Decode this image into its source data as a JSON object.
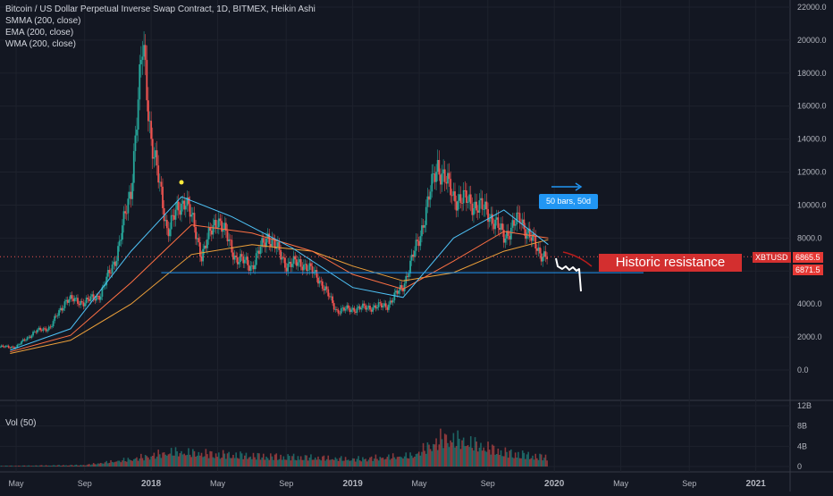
{
  "legend": {
    "title": "Bitcoin / US Dollar Perpetual Inverse Swap Contract, 1D, BITMEX, Heikin Ashi",
    "indicators": [
      "SMMA (200, close)",
      "EMA (200, close)",
      "WMA (200, close)"
    ]
  },
  "volume_label": "Vol (50)",
  "annotations": {
    "measure": "50 bars, 50d",
    "resistance": "Historic resistance"
  },
  "price_tags": {
    "symbol": "XBTUSD",
    "last": "6865.5",
    "other": "6871.5"
  },
  "colors": {
    "background": "#131722",
    "up": "#26a69a",
    "down": "#ef5350",
    "smma": "#f0a23a",
    "ema": "#ff7043",
    "wma": "#4fc3f7",
    "support_line": "#2196f3",
    "resistance_box": "#d32f2f"
  },
  "chart_data": {
    "type": "line",
    "x_ticks": [
      "May",
      "Sep",
      "2018",
      "May",
      "Sep",
      "2019",
      "May",
      "Sep",
      "2020",
      "May",
      "Sep",
      "2021"
    ],
    "y_ticks": [
      "22000.0",
      "20000.0",
      "18000.0",
      "16000.0",
      "14000.0",
      "12000.0",
      "10000.0",
      "8000.0",
      "6000.0",
      "4000.0",
      "2000.0",
      "0.0"
    ],
    "ylim": [
      -1000,
      22500
    ],
    "price": [
      [
        2017.33,
        1400
      ],
      [
        2017.42,
        2300
      ],
      [
        2017.5,
        2600
      ],
      [
        2017.58,
        4300
      ],
      [
        2017.67,
        4100
      ],
      [
        2017.75,
        4600
      ],
      [
        2017.83,
        7000
      ],
      [
        2017.9,
        11000
      ],
      [
        2017.96,
        19800
      ],
      [
        2018.0,
        14000
      ],
      [
        2018.08,
        8500
      ],
      [
        2018.17,
        10500
      ],
      [
        2018.25,
        7000
      ],
      [
        2018.33,
        9300
      ],
      [
        2018.42,
        6800
      ],
      [
        2018.5,
        6300
      ],
      [
        2018.58,
        8200
      ],
      [
        2018.67,
        6400
      ],
      [
        2018.75,
        6500
      ],
      [
        2018.83,
        5600
      ],
      [
        2018.92,
        3600
      ],
      [
        2019.0,
        3700
      ],
      [
        2019.17,
        3900
      ],
      [
        2019.25,
        5100
      ],
      [
        2019.33,
        8000
      ],
      [
        2019.42,
        12500
      ],
      [
        2019.5,
        10500
      ],
      [
        2019.58,
        10200
      ],
      [
        2019.67,
        9600
      ],
      [
        2019.75,
        8100
      ],
      [
        2019.83,
        9200
      ],
      [
        2019.92,
        7200
      ],
      [
        2019.97,
        6900
      ]
    ],
    "smma": [
      [
        2017.3,
        1000
      ],
      [
        2017.6,
        1800
      ],
      [
        2017.9,
        4000
      ],
      [
        2018.2,
        7000
      ],
      [
        2018.5,
        7600
      ],
      [
        2018.8,
        7200
      ],
      [
        2019.0,
        6300
      ],
      [
        2019.25,
        5400
      ],
      [
        2019.5,
        5900
      ],
      [
        2019.75,
        7200
      ],
      [
        2019.97,
        7900
      ]
    ],
    "ema": [
      [
        2017.3,
        1100
      ],
      [
        2017.6,
        2100
      ],
      [
        2017.9,
        5300
      ],
      [
        2018.2,
        8800
      ],
      [
        2018.5,
        8300
      ],
      [
        2018.8,
        7200
      ],
      [
        2019.0,
        5800
      ],
      [
        2019.25,
        4900
      ],
      [
        2019.5,
        6600
      ],
      [
        2019.75,
        8400
      ],
      [
        2019.97,
        8000
      ]
    ],
    "wma": [
      [
        2017.3,
        1200
      ],
      [
        2017.6,
        2500
      ],
      [
        2017.9,
        7200
      ],
      [
        2018.15,
        10500
      ],
      [
        2018.4,
        9300
      ],
      [
        2018.7,
        7400
      ],
      [
        2019.0,
        5000
      ],
      [
        2019.25,
        4400
      ],
      [
        2019.5,
        8000
      ],
      [
        2019.75,
        9700
      ],
      [
        2019.97,
        7600
      ]
    ],
    "support_level": 5900,
    "resistance_level": 6865.5,
    "volume": {
      "y_ticks": [
        "12B",
        "8B",
        "4B",
        "0"
      ],
      "ylim": [
        0,
        14
      ],
      "profile": [
        [
          2017.33,
          0.2
        ],
        [
          2017.67,
          0.4
        ],
        [
          2017.9,
          2.0
        ],
        [
          2018.1,
          4.0
        ],
        [
          2018.5,
          3.0
        ],
        [
          2018.8,
          2.5
        ],
        [
          2019.0,
          2.0
        ],
        [
          2019.3,
          3.0
        ],
        [
          2019.45,
          8.0
        ],
        [
          2019.55,
          7.0
        ],
        [
          2019.75,
          4.0
        ],
        [
          2019.97,
          2.5
        ]
      ]
    }
  }
}
